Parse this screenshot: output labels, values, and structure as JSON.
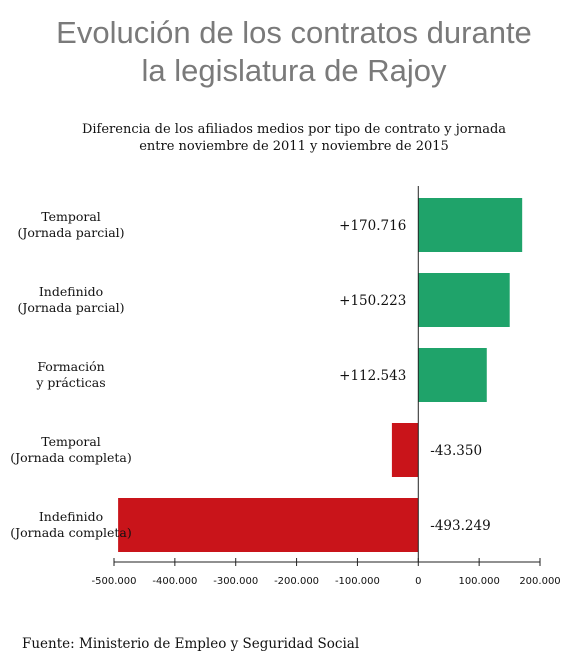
{
  "title_line1": "Evolución de los contratos durante",
  "title_line2": "la legislatura de Rajoy",
  "subtitle_line1": "Diferencia de los afiliados medios por tipo de contrato y jornada",
  "subtitle_line2": "entre noviembre de 2011 y noviembre de 2015",
  "source": "Fuente: Ministerio de Empleo y Seguridad Social",
  "colors": {
    "positive": "#1fa36a",
    "negative": "#c9141a"
  },
  "chart_data": {
    "type": "bar",
    "orientation": "horizontal",
    "categories": [
      [
        "Temporal",
        "(Jornada parcial)"
      ],
      [
        "Indefinido",
        "(Jornada parcial)"
      ],
      [
        "Formación",
        "y prácticas"
      ],
      [
        "Temporal",
        "(Jornada completa)"
      ],
      [
        "Indefinido",
        "(Jornada completa)"
      ]
    ],
    "values": [
      170716,
      150223,
      112543,
      -43350,
      -493249
    ],
    "value_labels": [
      "+170.716",
      "+150.223",
      "+112.543",
      "-43.350",
      "-493.249"
    ],
    "xlim": [
      -500000,
      200000
    ],
    "xticks": [
      -500000,
      -400000,
      -300000,
      -200000,
      -100000,
      0,
      100000,
      200000
    ],
    "xtick_labels": [
      "-500.000",
      "-400.000",
      "-300.000",
      "-200.000",
      "-100.000",
      "0",
      "100.000",
      "200.000"
    ],
    "xlabel": "",
    "ylabel": "",
    "grid": false
  }
}
